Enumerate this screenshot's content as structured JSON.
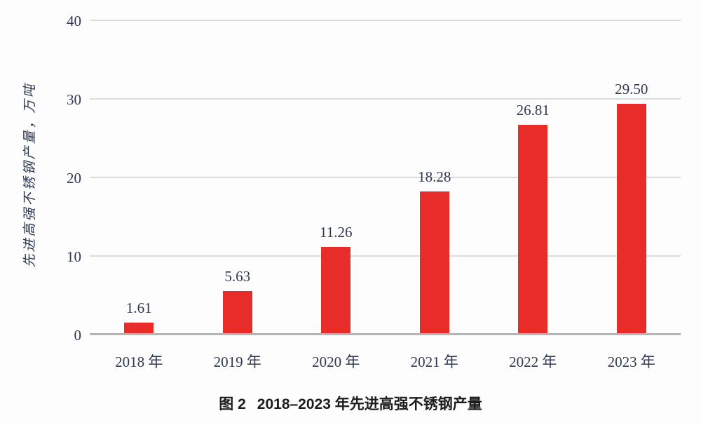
{
  "figure": {
    "caption_prefix": "图 2",
    "caption_title": "2018–2023 年先进高强不锈钢产量"
  },
  "chart_data": {
    "type": "bar",
    "title": "图 2 2018–2023 年先进高强不锈钢产量",
    "categories": [
      "2018 年",
      "2019 年",
      "2020 年",
      "2021 年",
      "2022 年",
      "2023 年"
    ],
    "values": [
      1.61,
      5.63,
      11.26,
      18.28,
      26.81,
      29.5
    ],
    "value_labels": [
      "1.61",
      "5.63",
      "11.26",
      "18.28",
      "26.81",
      "29.50"
    ],
    "xlabel": "",
    "ylabel": "先进高强不锈钢产量，万吨",
    "ylim": [
      0,
      40
    ],
    "yticks": [
      0,
      10,
      20,
      30,
      40
    ],
    "grid": true,
    "legend": false,
    "colors": {
      "bar": "#e72c2a",
      "value_label_text": "#2e3a52",
      "axis_text": "#2e3a52",
      "gridline": "#dcdcdc",
      "baseline": "#b5b5b5"
    }
  }
}
